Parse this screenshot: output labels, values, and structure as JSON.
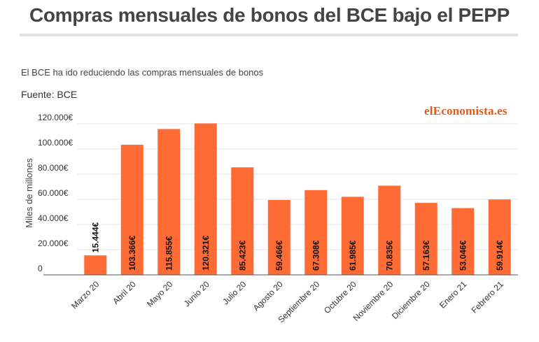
{
  "header": {
    "title": "Compras mensuales de bonos del BCE bajo el PEPP",
    "subtitle": "El BCE ha ido reduciendo las compras mensuales de bonos",
    "source": "Fuente: BCE",
    "brand": "elEconomista.es"
  },
  "colors": {
    "bar": "#ff6b35",
    "grid": "#e6e6e6",
    "axis": "#555555",
    "brand": "#e05a1e"
  },
  "chart_data": {
    "type": "bar",
    "title": "Compras mensuales de bonos del BCE bajo el PEPP",
    "ylabel": "Miles de millones",
    "xlabel": "",
    "ylim": [
      0,
      120000
    ],
    "yticks": [
      0,
      20000,
      40000,
      60000,
      80000,
      100000,
      120000
    ],
    "ytick_labels": [
      "0",
      "20.000€",
      "40.000€",
      "60.000€",
      "80.000€",
      "100.000€",
      "120.000€"
    ],
    "grid": true,
    "categories": [
      "Marzo 20",
      "Abril 20",
      "Mayo 20",
      "Junio 20",
      "Julio 20",
      "Agosto 20",
      "Septiembre 20",
      "Octubre 20",
      "Noviembre 20",
      "Diciembre 20",
      "Enero 21",
      "Febrero 21"
    ],
    "values": [
      15444,
      103366,
      115855,
      120321,
      85423,
      59466,
      67308,
      61985,
      70835,
      57163,
      53046,
      59914
    ],
    "value_labels": [
      "15.444€",
      "103.366€",
      "115.855€",
      "120.321€",
      "85.423€",
      "59.466€",
      "67.308€",
      "61.985€",
      "70.835€",
      "57.163€",
      "53.046€",
      "59.914€"
    ]
  }
}
